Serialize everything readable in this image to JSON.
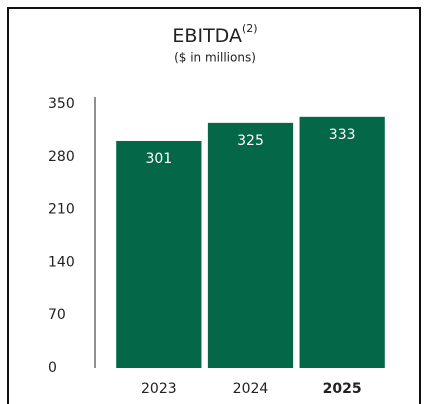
{
  "chart_data": {
    "type": "bar",
    "title": "EBITDA",
    "title_superscript": "(2)",
    "subtitle": "($ in millions)",
    "categories": [
      "2023",
      "2024",
      "2025"
    ],
    "values": [
      301,
      325,
      333
    ],
    "color": "#046747",
    "highlight": "2025",
    "ylim": [
      0,
      350
    ],
    "yticks": [
      0,
      70,
      140,
      210,
      280,
      350
    ],
    "grid": false
  }
}
